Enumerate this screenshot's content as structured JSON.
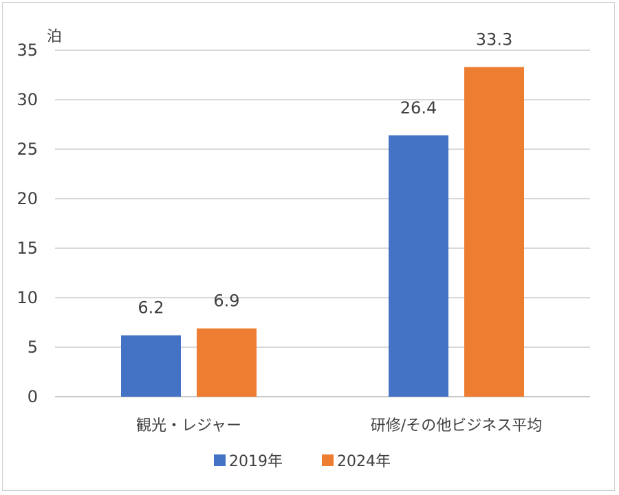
{
  "chart_data": {
    "type": "bar",
    "unit": "泊",
    "categories": [
      "観光・レジャー",
      "研修/その他ビジネス平均"
    ],
    "series": [
      {
        "name": "2019年",
        "color": "#4472C4",
        "values": [
          6.2,
          26.4
        ]
      },
      {
        "name": "2024年",
        "color": "#ED7D31",
        "values": [
          6.9,
          33.3
        ]
      }
    ],
    "ylim": [
      0,
      35
    ],
    "yticks": [
      0,
      5,
      10,
      15,
      20,
      25,
      30,
      35
    ],
    "grid": true,
    "legend": "bottom"
  }
}
